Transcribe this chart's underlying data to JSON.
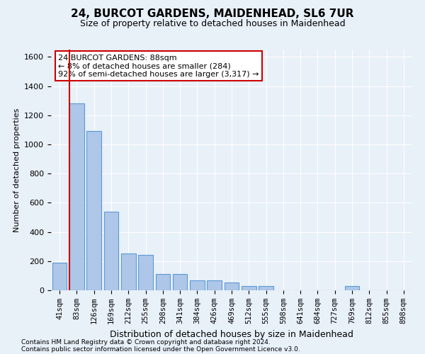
{
  "title1": "24, BURCOT GARDENS, MAIDENHEAD, SL6 7UR",
  "title2": "Size of property relative to detached houses in Maidenhead",
  "xlabel": "Distribution of detached houses by size in Maidenhead",
  "ylabel": "Number of detached properties",
  "categories": [
    "41sqm",
    "83sqm",
    "126sqm",
    "169sqm",
    "212sqm",
    "255sqm",
    "298sqm",
    "341sqm",
    "384sqm",
    "426sqm",
    "469sqm",
    "512sqm",
    "555sqm",
    "598sqm",
    "641sqm",
    "684sqm",
    "727sqm",
    "769sqm",
    "812sqm",
    "855sqm",
    "898sqm"
  ],
  "values": [
    190,
    1280,
    1090,
    540,
    250,
    245,
    110,
    110,
    70,
    70,
    55,
    30,
    30,
    0,
    0,
    0,
    0,
    30,
    0,
    0,
    0
  ],
  "bar_color": "#aec6e8",
  "bar_edge_color": "#5b9bd5",
  "property_bar_index": 1,
  "property_line_color": "#cc0000",
  "ylim": [
    0,
    1650
  ],
  "yticks": [
    0,
    200,
    400,
    600,
    800,
    1000,
    1200,
    1400,
    1600
  ],
  "annotation_text": "24 BURCOT GARDENS: 88sqm\n← 8% of detached houses are smaller (284)\n92% of semi-detached houses are larger (3,317) →",
  "annotation_box_facecolor": "#ffffff",
  "annotation_box_edgecolor": "#cc0000",
  "footer1": "Contains HM Land Registry data © Crown copyright and database right 2024.",
  "footer2": "Contains public sector information licensed under the Open Government Licence v3.0.",
  "bg_color": "#e8f0f8",
  "grid_color": "#ffffff",
  "title1_fontsize": 11,
  "title2_fontsize": 9,
  "ylabel_fontsize": 8,
  "xlabel_fontsize": 9,
  "tick_fontsize": 8,
  "xtick_fontsize": 7.5,
  "annotation_fontsize": 8,
  "footer_fontsize": 6.5
}
